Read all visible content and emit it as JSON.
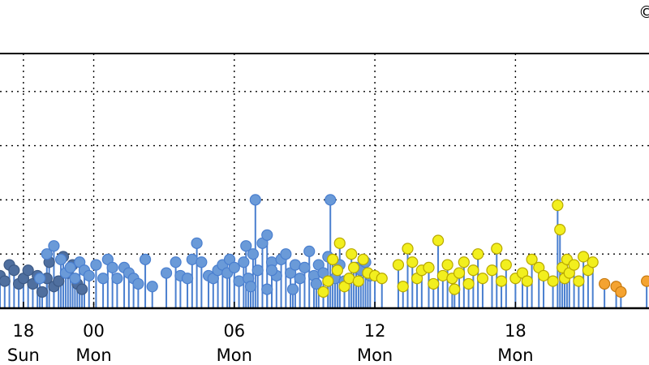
{
  "corner_mark": "©",
  "colors": {
    "background": "#ffffff",
    "axis": "#000000",
    "grid": "#000000",
    "stem": "#4a7fcf"
  },
  "chart_data": {
    "type": "scatter",
    "style": "stem",
    "title": "",
    "xlabel": "",
    "ylabel": "",
    "grid": true,
    "legend": "none",
    "xlim": [
      -4,
      23.7
    ],
    "ylim": [
      0,
      4.7
    ],
    "x_ticks": [
      {
        "value": -3,
        "hour": "18",
        "day": "Sun"
      },
      {
        "value": 0,
        "hour": "00",
        "day": "Mon"
      },
      {
        "value": 6,
        "hour": "06",
        "day": "Mon"
      },
      {
        "value": 12,
        "hour": "12",
        "day": "Mon"
      },
      {
        "value": 18,
        "hour": "18",
        "day": "Mon"
      }
    ],
    "y_grid": [
      1,
      2,
      3,
      4
    ],
    "series": [
      {
        "fill": "#4f6f9f",
        "stroke": "#3d5a86",
        "points": [
          [
            -4.0,
            0.6
          ],
          [
            -3.8,
            0.5
          ],
          [
            -3.6,
            0.8
          ],
          [
            -3.4,
            0.7
          ],
          [
            -3.2,
            0.45
          ],
          [
            -3.0,
            0.55
          ],
          [
            -2.8,
            0.7
          ],
          [
            -2.6,
            0.45
          ],
          [
            -2.4,
            0.6
          ],
          [
            -2.2,
            0.3
          ],
          [
            -2.0,
            0.55
          ],
          [
            -1.9,
            0.85
          ],
          [
            -1.7,
            0.4
          ],
          [
            -1.5,
            0.5
          ],
          [
            -1.3,
            0.95
          ],
          [
            -1.1,
            0.65
          ],
          [
            -0.9,
            0.8
          ],
          [
            -0.7,
            0.45
          ],
          [
            -0.5,
            0.35
          ]
        ]
      },
      {
        "fill": "#6a9ad8",
        "stroke": "#4a7fcf",
        "points": [
          [
            -2.3,
            0.55
          ],
          [
            -2.0,
            1.0
          ],
          [
            -1.7,
            1.15
          ],
          [
            -1.4,
            0.9
          ],
          [
            -1.2,
            0.65
          ],
          [
            -1.0,
            0.75
          ],
          [
            -0.8,
            0.55
          ],
          [
            -0.6,
            0.85
          ],
          [
            -0.4,
            0.7
          ],
          [
            -0.2,
            0.6
          ],
          [
            0.1,
            0.8
          ],
          [
            0.4,
            0.55
          ],
          [
            0.6,
            0.9
          ],
          [
            0.8,
            0.75
          ],
          [
            1.0,
            0.55
          ],
          [
            1.3,
            0.75
          ],
          [
            1.5,
            0.65
          ],
          [
            1.7,
            0.55
          ],
          [
            1.9,
            0.45
          ],
          [
            2.2,
            0.9
          ],
          [
            2.5,
            0.4
          ],
          [
            3.1,
            0.65
          ],
          [
            3.5,
            0.85
          ],
          [
            3.7,
            0.6
          ],
          [
            4.0,
            0.55
          ],
          [
            4.2,
            0.9
          ],
          [
            4.4,
            1.2
          ],
          [
            4.6,
            0.85
          ],
          [
            4.9,
            0.6
          ],
          [
            5.1,
            0.55
          ],
          [
            5.3,
            0.7
          ],
          [
            5.5,
            0.8
          ],
          [
            5.7,
            0.65
          ],
          [
            5.8,
            0.9
          ],
          [
            6.0,
            0.75
          ],
          [
            6.2,
            0.5
          ],
          [
            6.4,
            0.85
          ],
          [
            6.5,
            1.15
          ],
          [
            6.6,
            0.55
          ],
          [
            6.8,
            1.0
          ],
          [
            6.9,
            2.0
          ],
          [
            7.0,
            0.7
          ],
          [
            7.2,
            1.2
          ],
          [
            7.4,
            1.35
          ],
          [
            7.6,
            0.85
          ],
          [
            7.8,
            0.6
          ],
          [
            8.0,
            0.9
          ],
          [
            8.2,
            1.0
          ],
          [
            8.4,
            0.65
          ],
          [
            8.6,
            0.8
          ],
          [
            8.8,
            0.55
          ],
          [
            9.0,
            0.75
          ],
          [
            9.2,
            1.05
          ],
          [
            9.4,
            0.6
          ],
          [
            9.6,
            0.8
          ],
          [
            9.8,
            0.65
          ],
          [
            10.0,
            0.95
          ],
          [
            10.1,
            2.0
          ],
          [
            10.3,
            0.55
          ],
          [
            10.5,
            0.8
          ],
          [
            11.2,
            0.75
          ],
          [
            11.4,
            0.7
          ],
          [
            11.6,
            0.85
          ],
          [
            11.8,
            0.6
          ],
          [
            7.6,
            0.7
          ],
          [
            7.4,
            0.35
          ],
          [
            6.7,
            0.4
          ],
          [
            9.5,
            0.45
          ],
          [
            10.7,
            0.5
          ],
          [
            8.5,
            0.35
          ]
        ]
      },
      {
        "fill": "#f2ef1e",
        "stroke": "#b8a800",
        "points": [
          [
            9.8,
            0.3
          ],
          [
            10.0,
            0.5
          ],
          [
            10.2,
            0.9
          ],
          [
            10.4,
            0.7
          ],
          [
            10.5,
            1.2
          ],
          [
            10.7,
            0.4
          ],
          [
            10.9,
            0.55
          ],
          [
            11.0,
            1.0
          ],
          [
            11.1,
            0.75
          ],
          [
            11.3,
            0.5
          ],
          [
            11.5,
            0.9
          ],
          [
            11.7,
            0.65
          ],
          [
            12.0,
            0.6
          ],
          [
            12.3,
            0.55
          ],
          [
            13.0,
            0.8
          ],
          [
            13.2,
            0.4
          ],
          [
            13.4,
            1.1
          ],
          [
            13.6,
            0.85
          ],
          [
            13.8,
            0.55
          ],
          [
            14.0,
            0.7
          ],
          [
            14.3,
            0.75
          ],
          [
            14.5,
            0.45
          ],
          [
            14.7,
            1.25
          ],
          [
            14.9,
            0.6
          ],
          [
            15.1,
            0.8
          ],
          [
            15.3,
            0.55
          ],
          [
            15.4,
            0.35
          ],
          [
            15.6,
            0.65
          ],
          [
            15.8,
            0.85
          ],
          [
            16.0,
            0.45
          ],
          [
            16.2,
            0.7
          ],
          [
            16.4,
            1.0
          ],
          [
            16.6,
            0.55
          ],
          [
            17.0,
            0.7
          ],
          [
            17.2,
            1.1
          ],
          [
            17.4,
            0.5
          ],
          [
            17.6,
            0.8
          ],
          [
            18.0,
            0.55
          ],
          [
            18.3,
            0.65
          ],
          [
            18.5,
            0.5
          ],
          [
            18.7,
            0.9
          ],
          [
            19.0,
            0.75
          ],
          [
            19.2,
            0.6
          ],
          [
            19.6,
            0.5
          ],
          [
            19.8,
            1.9
          ],
          [
            19.9,
            1.45
          ],
          [
            20.0,
            0.75
          ],
          [
            20.1,
            0.55
          ],
          [
            20.2,
            0.9
          ],
          [
            20.3,
            0.65
          ],
          [
            20.5,
            0.8
          ],
          [
            20.7,
            0.5
          ],
          [
            20.9,
            0.95
          ],
          [
            21.1,
            0.7
          ],
          [
            21.3,
            0.85
          ]
        ]
      },
      {
        "fill": "#f4a331",
        "stroke": "#c77a10",
        "points": [
          [
            21.8,
            0.45
          ],
          [
            22.3,
            0.4
          ],
          [
            22.5,
            0.3
          ],
          [
            23.6,
            0.5
          ]
        ]
      }
    ]
  }
}
